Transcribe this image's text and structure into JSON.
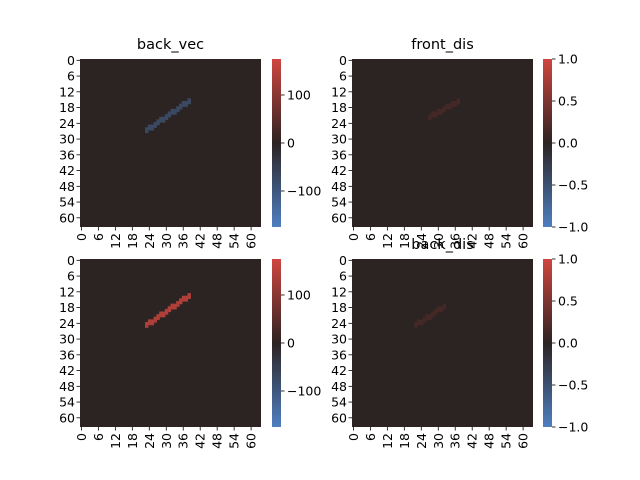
{
  "colormap": {
    "neg": "#4e7fc0",
    "mid": "#2c2323",
    "pos": "#cf463f"
  },
  "chart_data": [
    {
      "type": "heatmap",
      "title": "back_vec",
      "grid_size": 64,
      "tick_labels": [
        "0",
        "6",
        "12",
        "18",
        "24",
        "30",
        "36",
        "42",
        "48",
        "54",
        "60"
      ],
      "vmin": -175,
      "vmax": 175,
      "colorbar_ticks": [
        -100,
        0,
        100
      ],
      "colorbar_tick_labels": [
        "−100",
        "0",
        "100"
      ],
      "background_value": 0,
      "feature": {
        "from": [
          23,
          26
        ],
        "to": [
          38,
          15
        ],
        "value": -70,
        "thickness": 2
      }
    },
    {
      "type": "heatmap",
      "title": "front_dis",
      "grid_size": 64,
      "tick_labels": [
        "0",
        "6",
        "12",
        "18",
        "24",
        "30",
        "36",
        "42",
        "48",
        "54",
        "60"
      ],
      "vmin": -1,
      "vmax": 1,
      "colorbar_ticks": [
        -1,
        -0.5,
        0,
        0.5,
        1
      ],
      "colorbar_tick_labels": [
        "−1.0",
        "−0.5",
        "0.0",
        "0.5",
        "1.0"
      ],
      "background_value": 0,
      "feature": {
        "from": [
          27,
          21
        ],
        "to": [
          37,
          15
        ],
        "value": 0.15,
        "thickness": 2
      }
    },
    {
      "type": "heatmap",
      "title": "",
      "grid_size": 64,
      "tick_labels": [
        "0",
        "6",
        "12",
        "18",
        "24",
        "30",
        "36",
        "42",
        "48",
        "54",
        "60"
      ],
      "vmin": -175,
      "vmax": 175,
      "colorbar_ticks": [
        -100,
        0,
        100
      ],
      "colorbar_tick_labels": [
        "−100",
        "0",
        "100"
      ],
      "background_value": 0,
      "feature": {
        "from": [
          23,
          24
        ],
        "to": [
          38,
          13
        ],
        "value": 140,
        "thickness": 2
      }
    },
    {
      "type": "heatmap",
      "title": "back_dis",
      "grid_size": 64,
      "tick_labels": [
        "0",
        "6",
        "12",
        "18",
        "24",
        "30",
        "36",
        "42",
        "48",
        "54",
        "60"
      ],
      "vmin": -1,
      "vmax": 1,
      "colorbar_ticks": [
        -1,
        -0.5,
        0,
        0.5,
        1
      ],
      "colorbar_tick_labels": [
        "−1.0",
        "−0.5",
        "0.0",
        "0.5",
        "1.0"
      ],
      "background_value": 0,
      "feature": {
        "from": [
          22,
          24
        ],
        "to": [
          32,
          17
        ],
        "value": 0.15,
        "thickness": 2
      }
    }
  ]
}
